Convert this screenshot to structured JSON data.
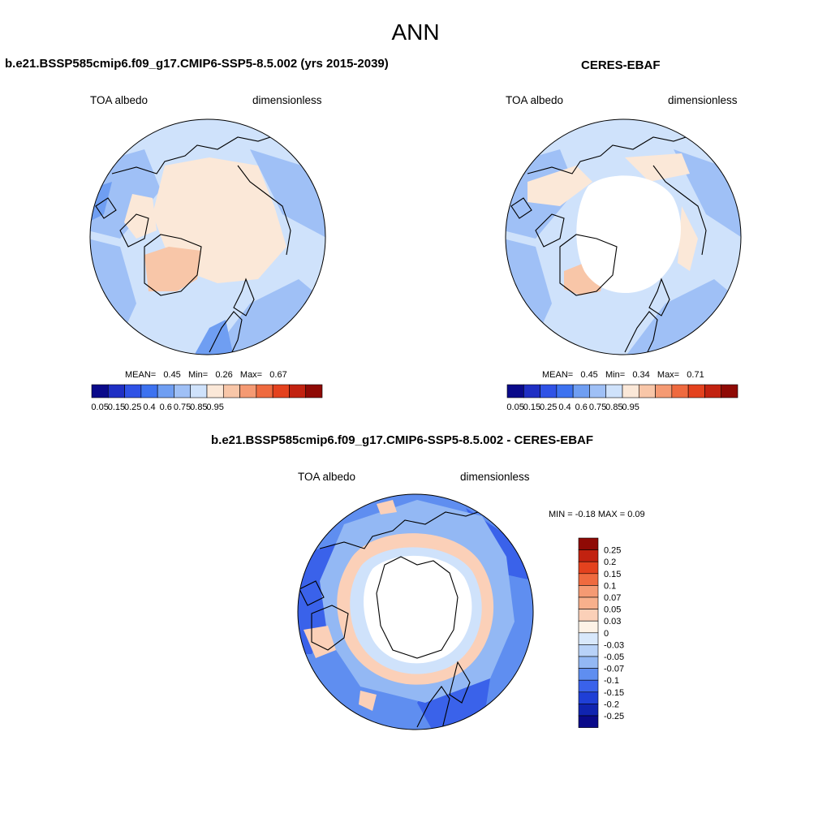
{
  "title": "ANN",
  "panels": [
    {
      "title": "b.e21.BSSP585cmip6.f09_g17.CMIP6-SSP5-8.5.002 (yrs 2015-2039)",
      "left_label": "TOA albedo",
      "right_label": "dimensionless",
      "stats": {
        "mean_label": "MEAN=",
        "mean": "0.45",
        "min_label": "Min=",
        "min": "0.26",
        "max_label": "Max=",
        "max": "0.67"
      }
    },
    {
      "title": "CERES-EBAF",
      "left_label": "TOA albedo",
      "right_label": "dimensionless",
      "stats": {
        "mean_label": "MEAN=",
        "mean": "0.45",
        "min_label": "Min=",
        "min": "0.34",
        "max_label": "Max=",
        "max": "0.71"
      }
    },
    {
      "title": "b.e21.BSSP585cmip6.f09_g17.CMIP6-SSP5-8.5.002 - CERES-EBAF",
      "left_label": "TOA albedo",
      "right_label": "dimensionless",
      "stats_text": "MIN =  -0.18 MAX =   0.09"
    }
  ],
  "colorbar_abs": {
    "tick_labels": [
      "0.05",
      "0.15",
      "0.25",
      "0.4",
      "0.6",
      "0.75",
      "0.85",
      "0.95"
    ],
    "colors": [
      "#0a0a8a",
      "#1f2fc4",
      "#2f52e6",
      "#3d72f0",
      "#6f9ef2",
      "#9fc0f6",
      "#cfe2fb",
      "#fbe8d8",
      "#f8c6a8",
      "#f59a73",
      "#ef6a3f",
      "#e4421e",
      "#c22210",
      "#8f0a05"
    ]
  },
  "colorbar_diff": {
    "tick_labels": [
      "0.25",
      "0.2",
      "0.15",
      "0.1",
      "0.07",
      "0.05",
      "0.03",
      "0",
      "-0.03",
      "-0.05",
      "-0.07",
      "-0.1",
      "-0.15",
      "-0.2",
      "-0.25"
    ],
    "colors": [
      "#8f0a05",
      "#c22210",
      "#e4421e",
      "#ef6a3f",
      "#f59a73",
      "#f8b08c",
      "#fbd0b8",
      "#fdf2e6",
      "#d8e8fb",
      "#b8d2f8",
      "#93b8f4",
      "#5f8ef0",
      "#3a62ea",
      "#1f3fd6",
      "#1024b0",
      "#0a0a8a"
    ]
  },
  "map_colors": {
    "ocean_light": "#cfe2fb",
    "ocean_mid": "#9fc0f6",
    "ocean_dark": "#6f9ef2",
    "high_albedo": "#fbe8d8",
    "higher_albedo": "#f8c6a8",
    "missing": "#ffffff",
    "diff_neg_strong": "#3a62ea",
    "diff_neg_mid": "#5f8ef0",
    "diff_neg_light": "#93b8f4",
    "diff_pos": "#fbd0b8"
  }
}
